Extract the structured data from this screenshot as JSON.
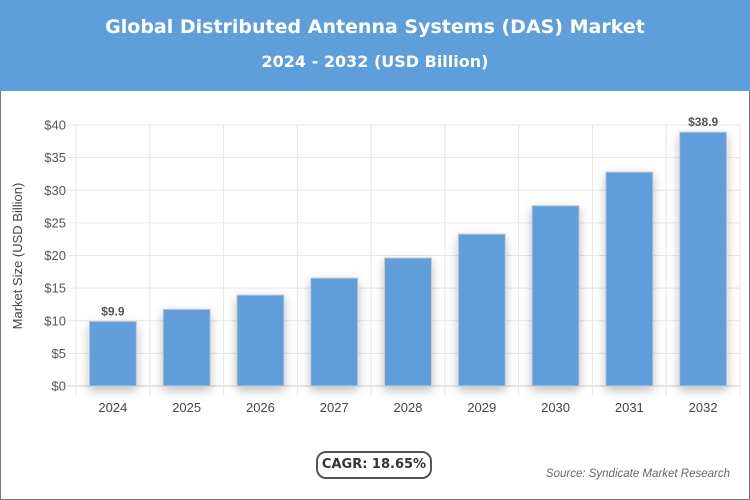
{
  "header": {
    "title": "Global Distributed Antenna Systems (DAS) Market",
    "subtitle": "2024 - 2032 (USD Billion)"
  },
  "chart_data": {
    "type": "bar",
    "title": "Global Distributed Antenna Systems (DAS) Market",
    "subtitle": "2024 - 2032 (USD Billion)",
    "categories": [
      "2024",
      "2025",
      "2026",
      "2027",
      "2028",
      "2029",
      "2030",
      "2031",
      "2032"
    ],
    "values": [
      9.9,
      11.75,
      13.94,
      16.54,
      19.62,
      23.28,
      27.63,
      32.78,
      38.9
    ],
    "data_labels": {
      "0": "$9.9",
      "8": "$38.9"
    },
    "ylabel": "Market Size (USD Billion)",
    "xlabel": "",
    "ylim": [
      0,
      40
    ],
    "yticks": [
      "$0",
      "$5",
      "$10",
      "$15",
      "$20",
      "$25",
      "$30",
      "$35",
      "$40"
    ],
    "grid": true,
    "bar_color": "#5e9edb"
  },
  "cagr_label": "CAGR: 18.65%",
  "source": "Source: Syndicate Market Research"
}
